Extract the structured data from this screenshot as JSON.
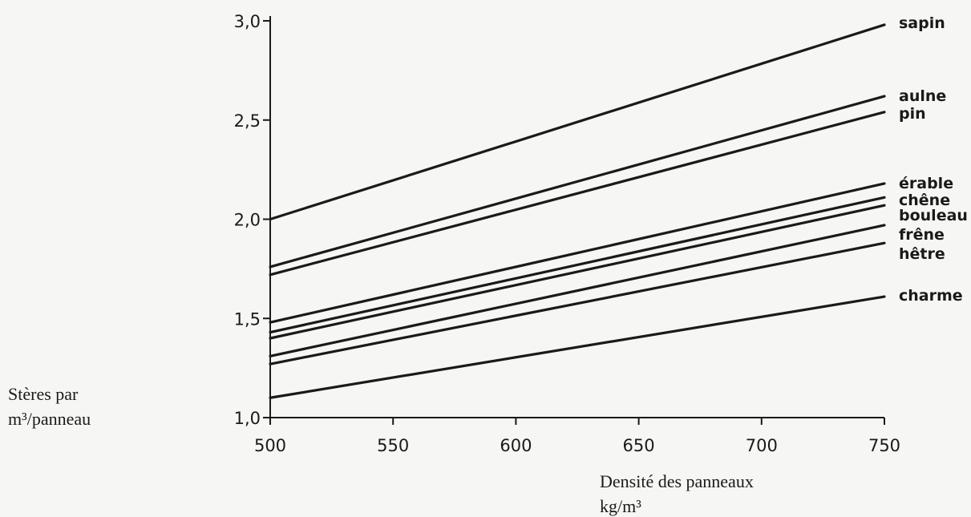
{
  "chart_data": {
    "type": "line",
    "title": "",
    "xlabel_lines": [
      "Densité des panneaux",
      "kg/m³"
    ],
    "ylabel_lines": [
      "Stères par",
      "m³/panneau"
    ],
    "x_ticks": [
      {
        "value": 500,
        "label": "500"
      },
      {
        "value": 550,
        "label": "550"
      },
      {
        "value": 600,
        "label": "600"
      },
      {
        "value": 650,
        "label": "650"
      },
      {
        "value": 700,
        "label": "700"
      },
      {
        "value": 750,
        "label": "750"
      }
    ],
    "y_ticks": [
      {
        "value": 1.0,
        "label": "1,0"
      },
      {
        "value": 1.5,
        "label": "1,5"
      },
      {
        "value": 2.0,
        "label": "2,0"
      },
      {
        "value": 2.5,
        "label": "2,5"
      },
      {
        "value": 3.0,
        "label": "3,0"
      }
    ],
    "xlim": [
      500,
      750
    ],
    "ylim": [
      1.0,
      3.0
    ],
    "grid": false,
    "legend": "labels at right end of lines",
    "line_color": "#1a1a1a",
    "series": [
      {
        "name": "sapin",
        "x": [
          500,
          750
        ],
        "y": [
          2.0,
          2.98
        ]
      },
      {
        "name": "aulne",
        "x": [
          500,
          750
        ],
        "y": [
          1.76,
          2.62
        ]
      },
      {
        "name": "pin",
        "x": [
          500,
          750
        ],
        "y": [
          1.72,
          2.54
        ]
      },
      {
        "name": "érable",
        "x": [
          500,
          750
        ],
        "y": [
          1.48,
          2.18
        ]
      },
      {
        "name": "chêne",
        "x": [
          500,
          750
        ],
        "y": [
          1.43,
          2.11
        ]
      },
      {
        "name": "bouleau",
        "x": [
          500,
          750
        ],
        "y": [
          1.4,
          2.07
        ]
      },
      {
        "name": "frêne",
        "x": [
          500,
          750
        ],
        "y": [
          1.31,
          1.97
        ]
      },
      {
        "name": "hêtre",
        "x": [
          500,
          750
        ],
        "y": [
          1.27,
          1.88
        ]
      },
      {
        "name": "charme",
        "x": [
          500,
          750
        ],
        "y": [
          1.1,
          1.61
        ]
      }
    ]
  }
}
